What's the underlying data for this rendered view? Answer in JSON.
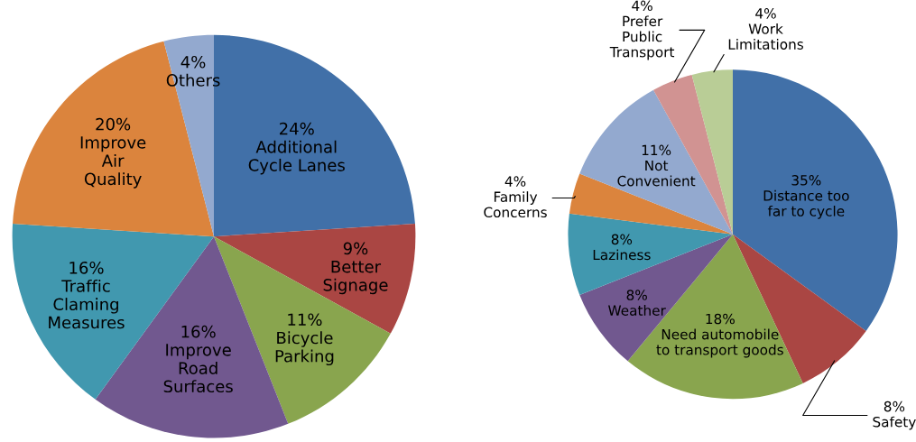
{
  "chart_data": [
    {
      "type": "pie",
      "categories": [
        "Additional\nCycle Lanes",
        "Better\nSignage",
        "Bicycle\nParking",
        "Improve\nRoad\nSurfaces",
        "Traffic\nClaming\nMeasures",
        "Improve\nAir\nQuality",
        "Others"
      ],
      "values": [
        24,
        9,
        11,
        16,
        16,
        20,
        4
      ],
      "value_labels": [
        "24%",
        "9%",
        "11%",
        "16%",
        "16%",
        "20%",
        "4%"
      ],
      "colors": [
        "#4170a8",
        "#aa4643",
        "#89a54e",
        "#71588f",
        "#4198af",
        "#db843d",
        "#93a9cf"
      ]
    },
    {
      "type": "pie",
      "categories": [
        "Distance too\nfar to cycle",
        "Safety",
        "Need automobile\nto transport goods",
        "Weather",
        "Laziness",
        "Family\nConcerns",
        "Not\nConvenient",
        "Prefer\nPublic\nTransport",
        "Work\nLimitations"
      ],
      "values": [
        35,
        8,
        18,
        8,
        8,
        4,
        11,
        4,
        4
      ],
      "value_labels": [
        "35%",
        "8%",
        "18%",
        "8%",
        "8%",
        "4%",
        "11%",
        "4%",
        "4%"
      ],
      "colors": [
        "#4170a8",
        "#aa4643",
        "#89a54e",
        "#71588f",
        "#4198af",
        "#db843d",
        "#93a9cf",
        "#d19392",
        "#b9cd96"
      ]
    }
  ]
}
